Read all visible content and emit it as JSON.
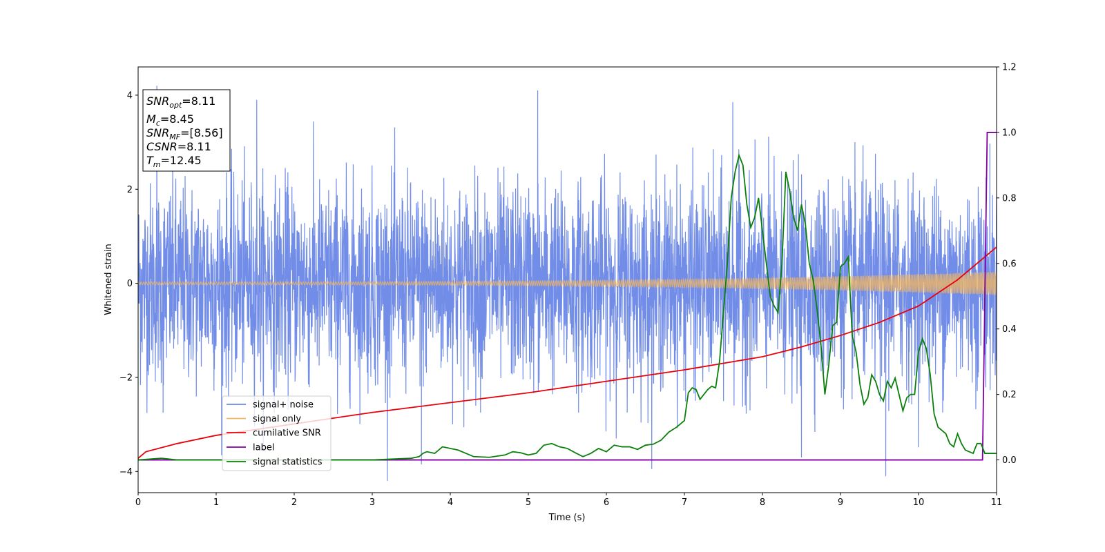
{
  "chart_data": {
    "type": "line",
    "title": "",
    "xlabel": "Time (s)",
    "ylabel": "Whitened strain",
    "xlim": [
      0,
      11
    ],
    "ylim": [
      -4.45,
      4.6
    ],
    "y2lim": [
      -0.1,
      1.2
    ],
    "x_ticks": [
      "0",
      "1",
      "2",
      "3",
      "4",
      "5",
      "6",
      "7",
      "8",
      "9",
      "10",
      "11"
    ],
    "y_ticks": [
      "−4",
      "−2",
      "0",
      "2",
      "4"
    ],
    "y2_ticks": [
      "0.0",
      "0.2",
      "0.4",
      "0.6",
      "0.8",
      "1.0",
      "1.2"
    ],
    "grid": false,
    "legend_position": "lower-left",
    "annotation_box": {
      "lines": [
        {
          "var": "SNR",
          "sub": "opt",
          "value": "=8.11"
        },
        {
          "var": "M",
          "sub": "c",
          "value": "=8.45"
        },
        {
          "var": "SNR",
          "sub": "MF",
          "value": "=[8.56]"
        },
        {
          "var": "CSNR",
          "sub": "",
          "value": "=8.11"
        },
        {
          "var": "T",
          "sub": "m",
          "value": "=12.45"
        }
      ]
    },
    "series": [
      {
        "name": "signal+ noise",
        "color": "#6a87e6",
        "axis": "left",
        "style": "noise",
        "sigma": 1.05,
        "spike_examples": [
          [
            0.24,
            4.2
          ],
          [
            1.52,
            3.9
          ],
          [
            5.12,
            4.1
          ],
          [
            7.62,
            3.85
          ],
          [
            3.63,
            -3.85
          ],
          [
            9.58,
            -4.1
          ],
          [
            0.32,
            -2.75
          ],
          [
            8.5,
            -3.7
          ]
        ]
      },
      {
        "name": "signal only",
        "color": "#f5b75c",
        "axis": "left",
        "style": "chirp",
        "amplitude_start": 0.03,
        "amplitude_end": 0.25
      },
      {
        "name": "cumilative SNR",
        "color": "#e8000b",
        "axis": "right",
        "x": [
          0,
          0.1,
          0.5,
          1,
          2,
          3,
          4,
          5,
          6,
          7,
          7.5,
          8,
          8.5,
          9,
          9.5,
          10,
          10.5,
          11
        ],
        "y": [
          0.005,
          0.025,
          0.05,
          0.075,
          0.11,
          0.145,
          0.175,
          0.205,
          0.24,
          0.275,
          0.295,
          0.315,
          0.345,
          0.38,
          0.42,
          0.47,
          0.55,
          0.65
        ]
      },
      {
        "name": "label",
        "color": "#8000a0",
        "axis": "right",
        "x": [
          0,
          10.82,
          10.88,
          11
        ],
        "y": [
          0,
          0,
          1.0,
          1.0
        ]
      },
      {
        "name": "signal statistics",
        "color": "#0a7f0a",
        "axis": "right",
        "x": [
          0,
          0.3,
          0.5,
          1,
          2,
          3,
          3.5,
          3.6,
          3.65,
          3.7,
          3.8,
          3.9,
          4.1,
          4.3,
          4.5,
          4.7,
          4.8,
          4.9,
          5.0,
          5.1,
          5.2,
          5.3,
          5.4,
          5.5,
          5.6,
          5.7,
          5.8,
          5.9,
          6.0,
          6.1,
          6.2,
          6.3,
          6.4,
          6.5,
          6.6,
          6.7,
          6.8,
          6.9,
          7.0,
          7.05,
          7.1,
          7.15,
          7.2,
          7.25,
          7.3,
          7.35,
          7.4,
          7.45,
          7.5,
          7.55,
          7.6,
          7.65,
          7.7,
          7.75,
          7.8,
          7.85,
          7.9,
          7.95,
          8.0,
          8.05,
          8.1,
          8.15,
          8.2,
          8.25,
          8.3,
          8.35,
          8.4,
          8.45,
          8.5,
          8.55,
          8.6,
          8.65,
          8.7,
          8.75,
          8.8,
          8.85,
          8.9,
          8.95,
          9.0,
          9.05,
          9.1,
          9.15,
          9.2,
          9.25,
          9.3,
          9.35,
          9.4,
          9.45,
          9.5,
          9.55,
          9.6,
          9.65,
          9.7,
          9.75,
          9.8,
          9.85,
          9.9,
          9.95,
          10.0,
          10.05,
          10.1,
          10.15,
          10.2,
          10.25,
          10.3,
          10.35,
          10.4,
          10.45,
          10.5,
          10.55,
          10.6,
          10.65,
          10.7,
          10.75,
          10.8,
          10.85,
          10.9,
          10.95,
          11.0
        ],
        "y": [
          0.0,
          0.005,
          0.0,
          0.0,
          0.0,
          0.0,
          0.005,
          0.01,
          0.02,
          0.025,
          0.02,
          0.04,
          0.03,
          0.01,
          0.008,
          0.015,
          0.025,
          0.022,
          0.015,
          0.02,
          0.045,
          0.05,
          0.04,
          0.035,
          0.022,
          0.01,
          0.02,
          0.035,
          0.025,
          0.045,
          0.04,
          0.04,
          0.032,
          0.045,
          0.048,
          0.06,
          0.085,
          0.1,
          0.12,
          0.205,
          0.22,
          0.215,
          0.185,
          0.2,
          0.215,
          0.225,
          0.22,
          0.3,
          0.45,
          0.6,
          0.8,
          0.88,
          0.93,
          0.9,
          0.78,
          0.71,
          0.74,
          0.8,
          0.7,
          0.6,
          0.5,
          0.47,
          0.45,
          0.6,
          0.88,
          0.82,
          0.74,
          0.7,
          0.78,
          0.72,
          0.6,
          0.55,
          0.46,
          0.35,
          0.2,
          0.29,
          0.41,
          0.42,
          0.59,
          0.6,
          0.62,
          0.38,
          0.33,
          0.23,
          0.17,
          0.19,
          0.26,
          0.24,
          0.2,
          0.18,
          0.24,
          0.22,
          0.25,
          0.2,
          0.15,
          0.19,
          0.2,
          0.2,
          0.33,
          0.37,
          0.34,
          0.26,
          0.14,
          0.1,
          0.09,
          0.08,
          0.05,
          0.04,
          0.08,
          0.05,
          0.03,
          0.025,
          0.02,
          0.05,
          0.05,
          0.02,
          0.02,
          0.02,
          0.02
        ]
      }
    ]
  }
}
